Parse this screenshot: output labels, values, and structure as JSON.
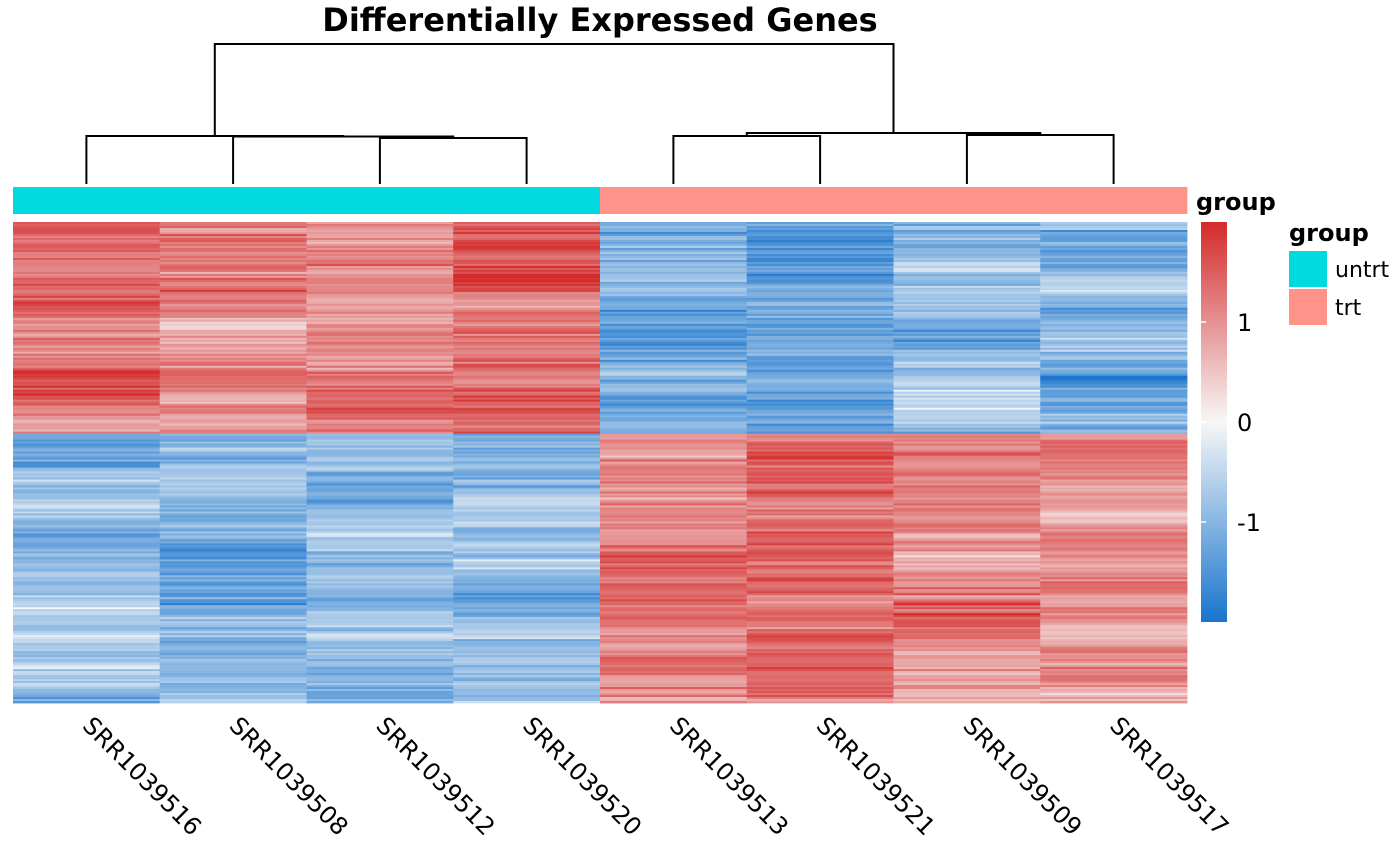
{
  "chart_data": {
    "type": "heatmap",
    "title": "Differentially Expressed Genes",
    "columns": [
      "SRR1039516",
      "SRR1039508",
      "SRR1039512",
      "SRR1039520",
      "SRR1039513",
      "SRR1039521",
      "SRR1039509",
      "SRR1039517"
    ],
    "column_groups": [
      "untrt",
      "untrt",
      "untrt",
      "untrt",
      "trt",
      "trt",
      "trt",
      "trt"
    ],
    "annotation": {
      "name": "group",
      "levels": [
        {
          "label": "untrt",
          "color": "#00DAE0"
        },
        {
          "label": "trt",
          "color": "#FF9289"
        }
      ]
    },
    "color_scale": {
      "low": "#1874CD",
      "mid": "#F7F7F7",
      "high": "#D42A2A",
      "range": [
        -2,
        2
      ],
      "ticks": [
        {
          "value": 1,
          "label": "1"
        },
        {
          "value": 0,
          "label": "0"
        },
        {
          "value": -1,
          "label": "-1"
        }
      ]
    },
    "row_blocks": [
      {
        "fraction": 0.44,
        "means": [
          1.3,
          1.2,
          1.0,
          1.4,
          -1.1,
          -1.2,
          -0.9,
          -0.9
        ]
      },
      {
        "fraction": 0.56,
        "means": [
          -0.9,
          -1.1,
          -0.9,
          -0.9,
          1.2,
          1.3,
          1.1,
          1.0
        ]
      }
    ],
    "dendrogram": {
      "merges": [
        {
          "a": 2,
          "b": 3,
          "height": 0.92
        },
        {
          "a": 1,
          "b": "m0",
          "height": 0.95
        },
        {
          "a": 0,
          "b": "m1",
          "height": 0.96
        },
        {
          "a": 4,
          "b": 5,
          "height": 0.96
        },
        {
          "a": 6,
          "b": 7,
          "height": 0.98
        },
        {
          "a": "m3",
          "b": "m4",
          "height": 1.02
        },
        {
          "a": "m2",
          "b": "m5",
          "height": 2.8
        }
      ]
    }
  }
}
